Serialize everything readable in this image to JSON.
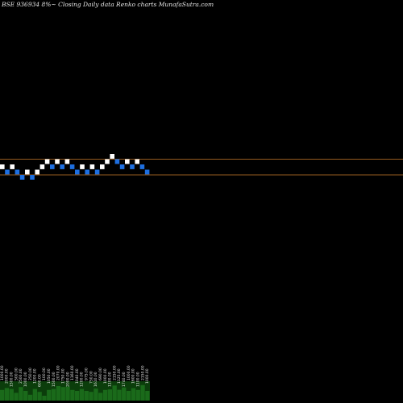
{
  "title": "BSE 936934  8%~  Closing Daily data  Renko  charts MunafaSutra.com",
  "colors": {
    "background": "#000000",
    "up_brick": "#ffffff",
    "down_brick": "#1e6fe0",
    "reference_line": "#c87a2a",
    "volume_fill": "#0b3d0b",
    "volume_bar": "#1a6a1a"
  },
  "chart_data": {
    "type": "renko",
    "title": "BSE 936934  8%~  Closing Daily data  Renko  charts MunafaSutra.com",
    "xlabel": "",
    "ylabel": "",
    "grid": false,
    "reference_lines": [
      1,
      -1
    ],
    "bricks": [
      {
        "dir": "up",
        "level": 0
      },
      {
        "dir": "down",
        "level": -1
      },
      {
        "dir": "up",
        "level": 0
      },
      {
        "dir": "down",
        "level": -1
      },
      {
        "dir": "down",
        "level": -2
      },
      {
        "dir": "up",
        "level": -1
      },
      {
        "dir": "down",
        "level": -2
      },
      {
        "dir": "up",
        "level": -1
      },
      {
        "dir": "up",
        "level": 0
      },
      {
        "dir": "up",
        "level": 1
      },
      {
        "dir": "down",
        "level": 0
      },
      {
        "dir": "up",
        "level": 1
      },
      {
        "dir": "down",
        "level": 0
      },
      {
        "dir": "up",
        "level": 1
      },
      {
        "dir": "down",
        "level": 0
      },
      {
        "dir": "down",
        "level": -1
      },
      {
        "dir": "up",
        "level": 0
      },
      {
        "dir": "down",
        "level": -1
      },
      {
        "dir": "up",
        "level": 0
      },
      {
        "dir": "down",
        "level": -1
      },
      {
        "dir": "up",
        "level": 0
      },
      {
        "dir": "up",
        "level": 1
      },
      {
        "dir": "up",
        "level": 2
      },
      {
        "dir": "down",
        "level": 1
      },
      {
        "dir": "down",
        "level": 0
      },
      {
        "dir": "up",
        "level": 1
      },
      {
        "dir": "down",
        "level": 0
      },
      {
        "dir": "up",
        "level": 1
      },
      {
        "dir": "down",
        "level": 0
      },
      {
        "dir": "down",
        "level": -1
      }
    ],
    "volume_labels": [
      "1000.00",
      "2000.00",
      "1500.00",
      "500.00",
      "2500.00",
      "1000.00",
      "250.00",
      "1200.00",
      "600.00",
      "100.00",
      "1050.00",
      "1500.00",
      "2070.00",
      "1750.00",
      "2000.00",
      "1160.00",
      "1040.00",
      "1200.00",
      "975.00",
      "750.00",
      "1610.00",
      "690.00",
      "1000.00",
      "1100.00",
      "2150.00",
      "1125.00",
      "1740.00",
      "1000.00",
      "1600.00",
      "1100.00",
      "2150.00",
      "1000.00"
    ],
    "volume_heights": [
      0.55,
      0.65,
      0.6,
      0.4,
      0.7,
      0.5,
      0.3,
      0.6,
      0.45,
      0.25,
      0.55,
      0.6,
      0.75,
      0.7,
      0.72,
      0.55,
      0.5,
      0.6,
      0.5,
      0.45,
      0.62,
      0.4,
      0.55,
      0.58,
      0.78,
      0.56,
      0.68,
      0.5,
      0.64,
      0.55,
      0.8,
      0.5
    ]
  }
}
